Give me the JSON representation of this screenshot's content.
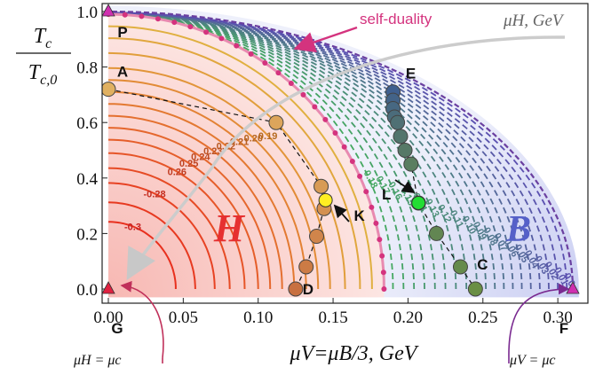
{
  "chart_data": {
    "type": "line",
    "title": "",
    "xlabel": "μV=μB/3, GeV",
    "ylabel": "Tc / Tc,0",
    "ylabel_numerator": "T_c",
    "ylabel_denominator": "T_c,0",
    "xlim": [
      0,
      0.31
    ],
    "ylim": [
      -0.03,
      1.0
    ],
    "xticks": [
      "0.00",
      "0.05",
      "0.10",
      "0.15",
      "0.20",
      "0.25",
      "0.30"
    ],
    "yticks": [
      "0.0",
      "0.2",
      "0.4",
      "0.6",
      "0.8",
      "1.0"
    ],
    "regions": [
      {
        "label": "H",
        "color": "#e63030"
      },
      {
        "label": "B",
        "color": "#5560c8"
      }
    ],
    "phase_boundary": {
      "name": "self-duality",
      "x0": 0.184,
      "y0": 0.99,
      "color": "#d4337e"
    },
    "outer_boundary": {
      "x0": 0.31,
      "y0": 1.0,
      "color": "#6a3fa0"
    },
    "contours_H": [
      {
        "value": "-0.3",
        "x0": 0.045
      },
      {
        "value": "",
        "x0": 0.058
      },
      {
        "value": "-0.28",
        "x0": 0.071
      },
      {
        "value": "",
        "x0": 0.081
      },
      {
        "value": "0.26",
        "x0": 0.091
      },
      {
        "value": "0.25",
        "x0": 0.1
      },
      {
        "value": "0.24",
        "x0": 0.108
      },
      {
        "value": "0.23",
        "x0": 0.116
      },
      {
        "value": "0.22",
        "x0": 0.124
      },
      {
        "value": "0.21",
        "x0": 0.132
      },
      {
        "value": "0.20",
        "x0": 0.14
      },
      {
        "value": "0.19",
        "x0": 0.148
      },
      {
        "value": "",
        "x0": 0.158
      },
      {
        "value": "",
        "x0": 0.168
      },
      {
        "value": "",
        "x0": 0.176
      }
    ],
    "contours_B": [
      {
        "value": "0.18",
        "x0": 0.19
      },
      {
        "value": "0.17",
        "x0": 0.197
      },
      {
        "value": "0.16",
        "x0": 0.204
      },
      {
        "value": "0.15",
        "x0": 0.211
      },
      {
        "value": "0.14",
        "x0": 0.218
      },
      {
        "value": "0.13",
        "x0": 0.225
      },
      {
        "value": "0.12",
        "x0": 0.232
      },
      {
        "value": "0.11",
        "x0": 0.239
      },
      {
        "value": "0.10",
        "x0": 0.246
      },
      {
        "value": "0.09",
        "x0": 0.252
      },
      {
        "value": "0.08",
        "x0": 0.258
      },
      {
        "value": "0.07",
        "x0": 0.264
      },
      {
        "value": "0.06",
        "x0": 0.27
      },
      {
        "value": "0.05",
        "x0": 0.276
      },
      {
        "value": "0.04",
        "x0": 0.282
      },
      {
        "value": "0.03",
        "x0": 0.288
      },
      {
        "value": "0.02",
        "x0": 0.294
      },
      {
        "value": "0.01",
        "x0": 0.3
      },
      {
        "value": "0.0",
        "x0": 0.306
      }
    ],
    "path_H": [
      {
        "x": 0.0,
        "y": 0.72
      },
      {
        "x": 0.112,
        "y": 0.6
      },
      {
        "x": 0.142,
        "y": 0.37
      },
      {
        "x": 0.144,
        "y": 0.29
      },
      {
        "x": 0.139,
        "y": 0.19
      },
      {
        "x": 0.132,
        "y": 0.08
      },
      {
        "x": 0.125,
        "y": 0.0
      }
    ],
    "path_B": [
      {
        "x": 0.19,
        "y": 0.71
      },
      {
        "x": 0.19,
        "y": 0.68
      },
      {
        "x": 0.19,
        "y": 0.65
      },
      {
        "x": 0.191,
        "y": 0.62
      },
      {
        "x": 0.193,
        "y": 0.6
      },
      {
        "x": 0.195,
        "y": 0.55
      },
      {
        "x": 0.198,
        "y": 0.5
      },
      {
        "x": 0.202,
        "y": 0.45
      },
      {
        "x": 0.207,
        "y": 0.31
      },
      {
        "x": 0.219,
        "y": 0.2
      },
      {
        "x": 0.235,
        "y": 0.08
      },
      {
        "x": 0.245,
        "y": 0.0
      }
    ],
    "marked_points": [
      {
        "label": "P",
        "x": 0.0,
        "y": 1.0,
        "marker": "triangle"
      },
      {
        "label": "A",
        "x": 0.0,
        "y": 0.72,
        "marker": "circle"
      },
      {
        "label": "E",
        "x": 0.19,
        "y": 0.72,
        "marker": "circle"
      },
      {
        "label": "K",
        "x": 0.145,
        "y": 0.32,
        "marker": "circle"
      },
      {
        "label": "L",
        "x": 0.207,
        "y": 0.31,
        "marker": "circle"
      },
      {
        "label": "C",
        "x": 0.245,
        "y": 0.0,
        "marker": "circle"
      },
      {
        "label": "D",
        "x": 0.125,
        "y": 0.0,
        "marker": "circle"
      },
      {
        "label": "G",
        "x": 0.0,
        "y": 0.0,
        "marker": "triangle"
      },
      {
        "label": "F",
        "x": 0.31,
        "y": 0.0,
        "marker": "triangle"
      }
    ]
  },
  "annotations": {
    "self_duality": "self-duality",
    "muH_axis": "μH, GeV",
    "region_H": "H",
    "region_B": "B",
    "G_caption": "μH = μc",
    "F_caption": "μV = μc"
  }
}
